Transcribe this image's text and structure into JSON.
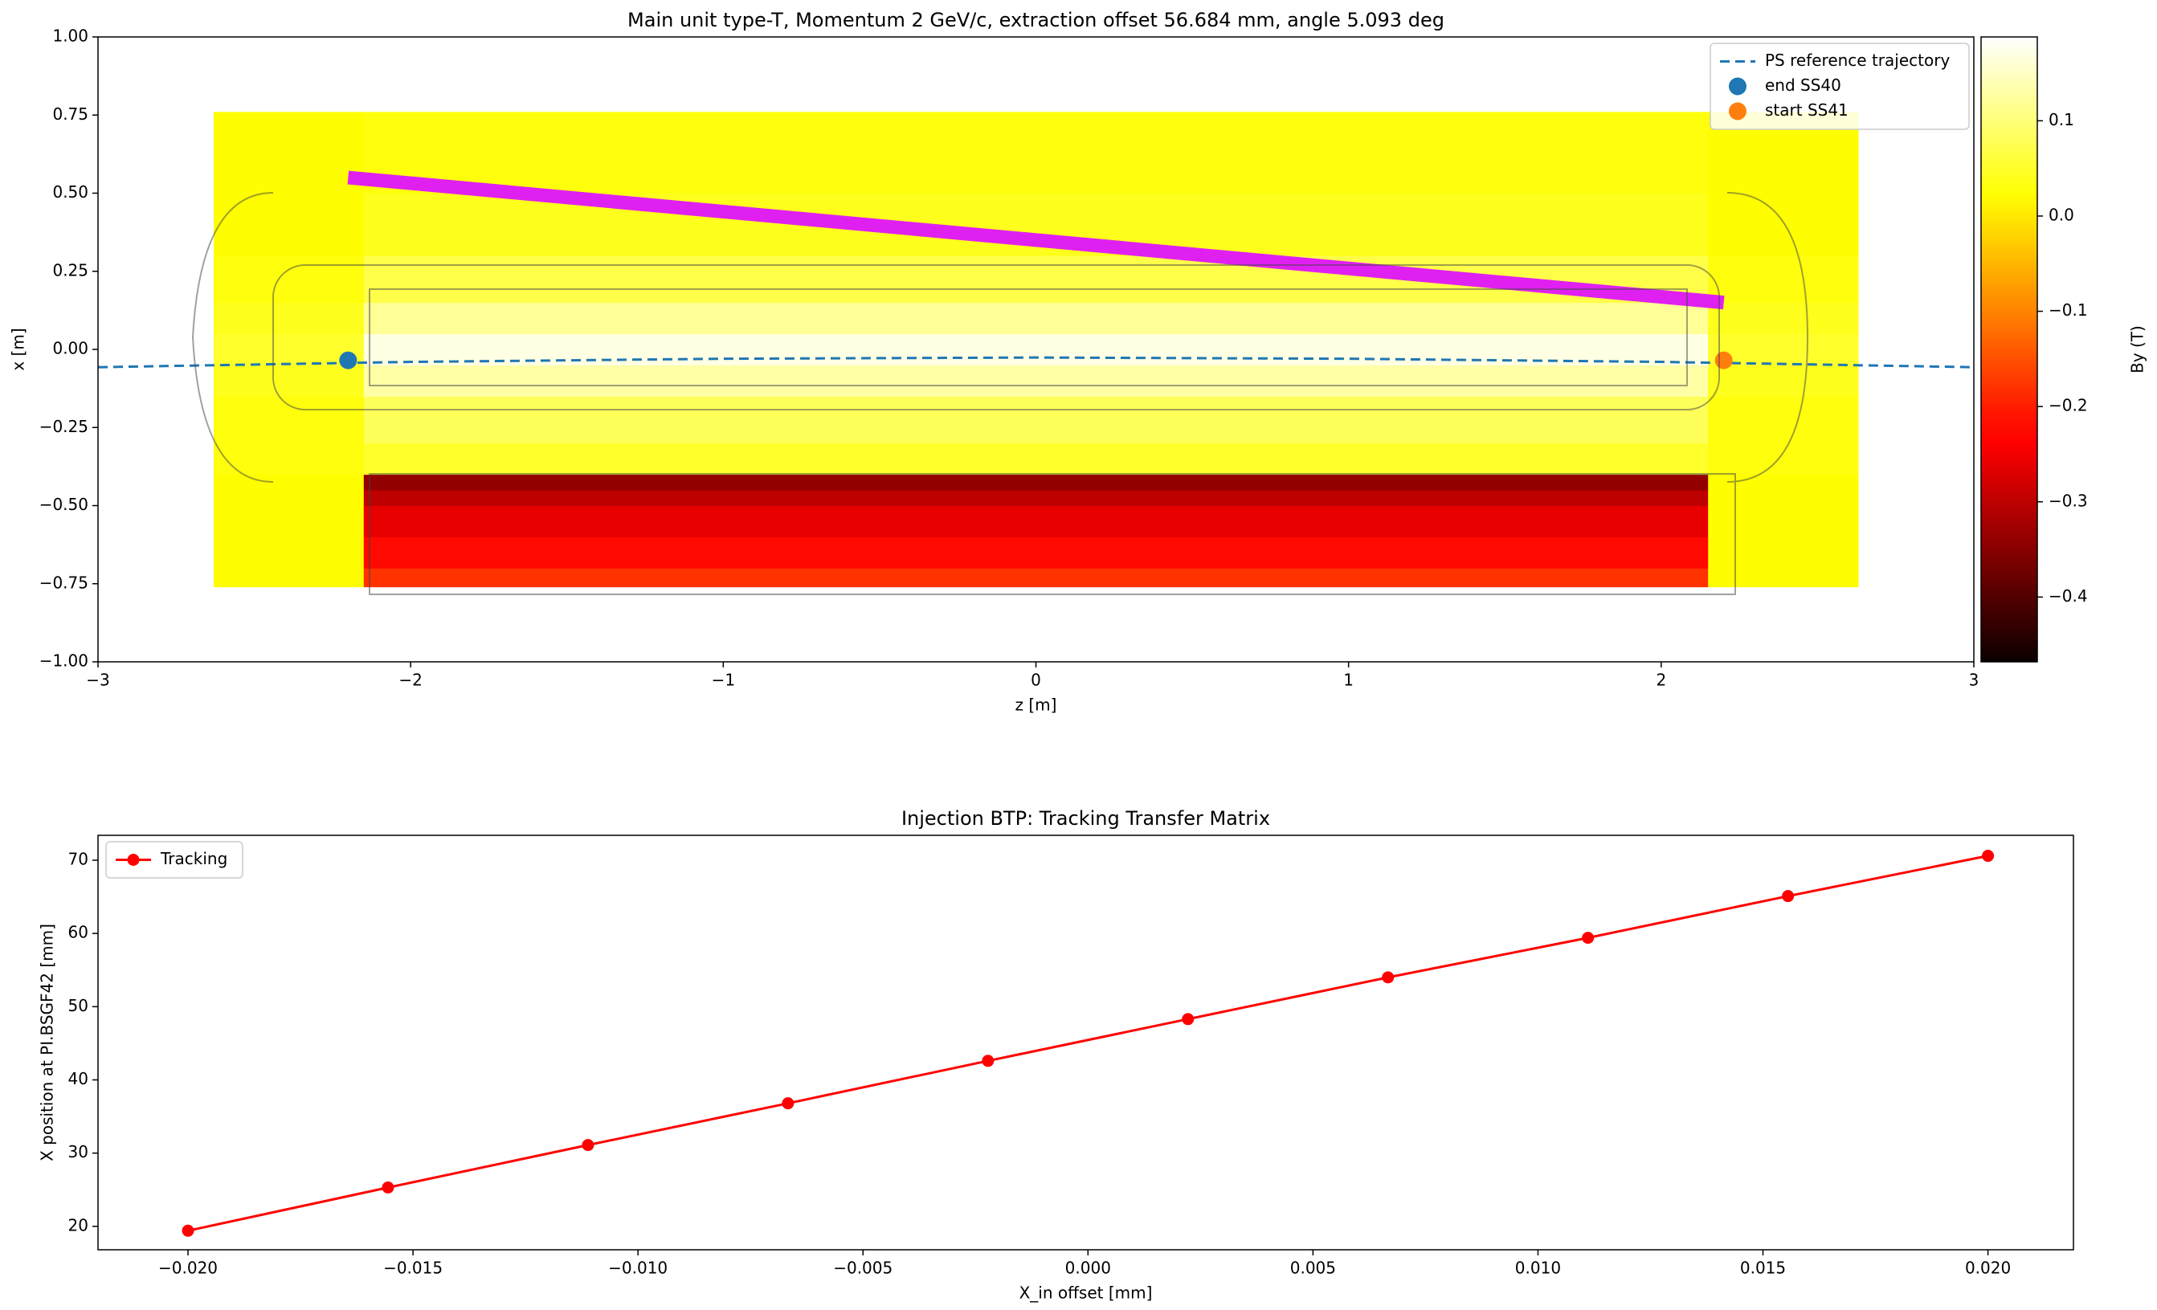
{
  "chart_data": [
    {
      "type": "heatmap",
      "title": "Main unit type-T, Momentum 2 GeV/c, extraction offset 56.684 mm, angle 5.093 deg",
      "xlabel": "z [m]",
      "ylabel": "x [m]",
      "xlim": [
        -3,
        3
      ],
      "ylim": [
        -1,
        1
      ],
      "xticks": [
        {
          "value": -3,
          "label": "−3"
        },
        {
          "value": -2,
          "label": "−2"
        },
        {
          "value": -1,
          "label": "−1"
        },
        0,
        1,
        2,
        3
      ],
      "yticks": [
        {
          "value": -1,
          "label": "−1.00"
        },
        {
          "value": -0.75,
          "label": "−0.75"
        },
        {
          "value": -0.5,
          "label": "−0.50"
        },
        {
          "value": -0.25,
          "label": "−0.25"
        },
        {
          "value": 0,
          "label": "0.00"
        },
        {
          "value": 0.25,
          "label": "0.25"
        },
        {
          "value": 0.5,
          "label": "0.50"
        },
        {
          "value": 0.75,
          "label": "0.75"
        },
        {
          "value": 1,
          "label": "1.00"
        }
      ],
      "field": {
        "colormap": "hot",
        "label": "By (T)",
        "clim": [
          -0.468,
          0.188
        ],
        "ticks": [
          {
            "value": -0.4,
            "label": "−0.4"
          },
          {
            "value": -0.3,
            "label": "−0.3"
          },
          {
            "value": -0.2,
            "label": "−0.2"
          },
          {
            "value": -0.1,
            "label": "−0.1"
          },
          {
            "value": 0,
            "label": "0.0"
          },
          0.1
        ],
        "z_edges": [
          -2.63,
          -2.15,
          2.15,
          2.63
        ],
        "x_edges": [
          -0.76,
          -0.7,
          -0.6,
          -0.5,
          -0.45,
          -0.4,
          -0.3,
          -0.15,
          -0.05,
          0.05,
          0.15,
          0.3,
          0.5,
          0.76
        ],
        "values": [
          [
            0.02,
            -0.18,
            0.02
          ],
          [
            0.02,
            -0.22,
            0.02
          ],
          [
            0.02,
            -0.26,
            0.02
          ],
          [
            0.02,
            -0.3,
            0.02
          ],
          [
            0.02,
            -0.34,
            0.02
          ],
          [
            0.03,
            0.05,
            0.03
          ],
          [
            0.03,
            0.08,
            0.03
          ],
          [
            0.04,
            0.13,
            0.04
          ],
          [
            0.05,
            0.17,
            0.05
          ],
          [
            0.04,
            0.12,
            0.04
          ],
          [
            0.03,
            0.07,
            0.03
          ],
          [
            0.02,
            0.04,
            0.02
          ],
          [
            0.02,
            0.03,
            0.02
          ]
        ]
      },
      "series": [
        {
          "name": "PS reference trajectory",
          "color": "#1f77b4",
          "style": "dashed",
          "x": [
            -3,
            -2,
            -1,
            0,
            1,
            2,
            3
          ],
          "values": [
            -0.057,
            -0.04,
            -0.03,
            -0.026,
            -0.03,
            -0.04,
            -0.057
          ]
        },
        {
          "name": "end SS40",
          "color": "#1f77b4",
          "marker": "circle",
          "x": [
            -2.2
          ],
          "values": [
            -0.035
          ]
        },
        {
          "name": "start SS41",
          "color": "#ff7f0e",
          "marker": "circle",
          "x": [
            2.2
          ],
          "values": [
            -0.035
          ]
        },
        {
          "color": "#e020f0",
          "style": "thick",
          "x": [
            -2.2,
            2.2
          ],
          "values": [
            0.55,
            0.15
          ]
        }
      ],
      "legend": "upper right"
    },
    {
      "type": "line",
      "title": "Injection BTP: Tracking Transfer Matrix",
      "xlabel": "X_in offset [mm]",
      "ylabel": "X position at PI.BSGF42 [mm]",
      "xlim": [
        -0.022,
        0.0219
      ],
      "ylim": [
        16.8,
        73.4
      ],
      "xticks": [
        {
          "value": -0.02,
          "label": "−0.020"
        },
        {
          "value": -0.015,
          "label": "−0.015"
        },
        {
          "value": -0.01,
          "label": "−0.010"
        },
        {
          "value": -0.005,
          "label": "−0.005"
        },
        {
          "value": 0,
          "label": "0.000"
        },
        {
          "value": 0.005,
          "label": "0.005"
        },
        {
          "value": 0.01,
          "label": "0.010"
        },
        {
          "value": 0.015,
          "label": "0.015"
        },
        {
          "value": 0.02,
          "label": "0.020"
        }
      ],
      "yticks": [
        20,
        30,
        40,
        50,
        60,
        70
      ],
      "series": [
        {
          "name": "Tracking",
          "color": "#ff0000",
          "style": "solid",
          "marker": "circle",
          "x": [
            -0.02,
            -0.015556,
            -0.011111,
            -0.006667,
            -0.002222,
            0.002222,
            0.006667,
            0.011111,
            0.015556,
            0.02
          ],
          "values": [
            19.4,
            25.3,
            31.1,
            36.8,
            42.6,
            48.3,
            54.0,
            59.4,
            65.1,
            70.6
          ]
        }
      ],
      "legend": "upper left"
    }
  ]
}
